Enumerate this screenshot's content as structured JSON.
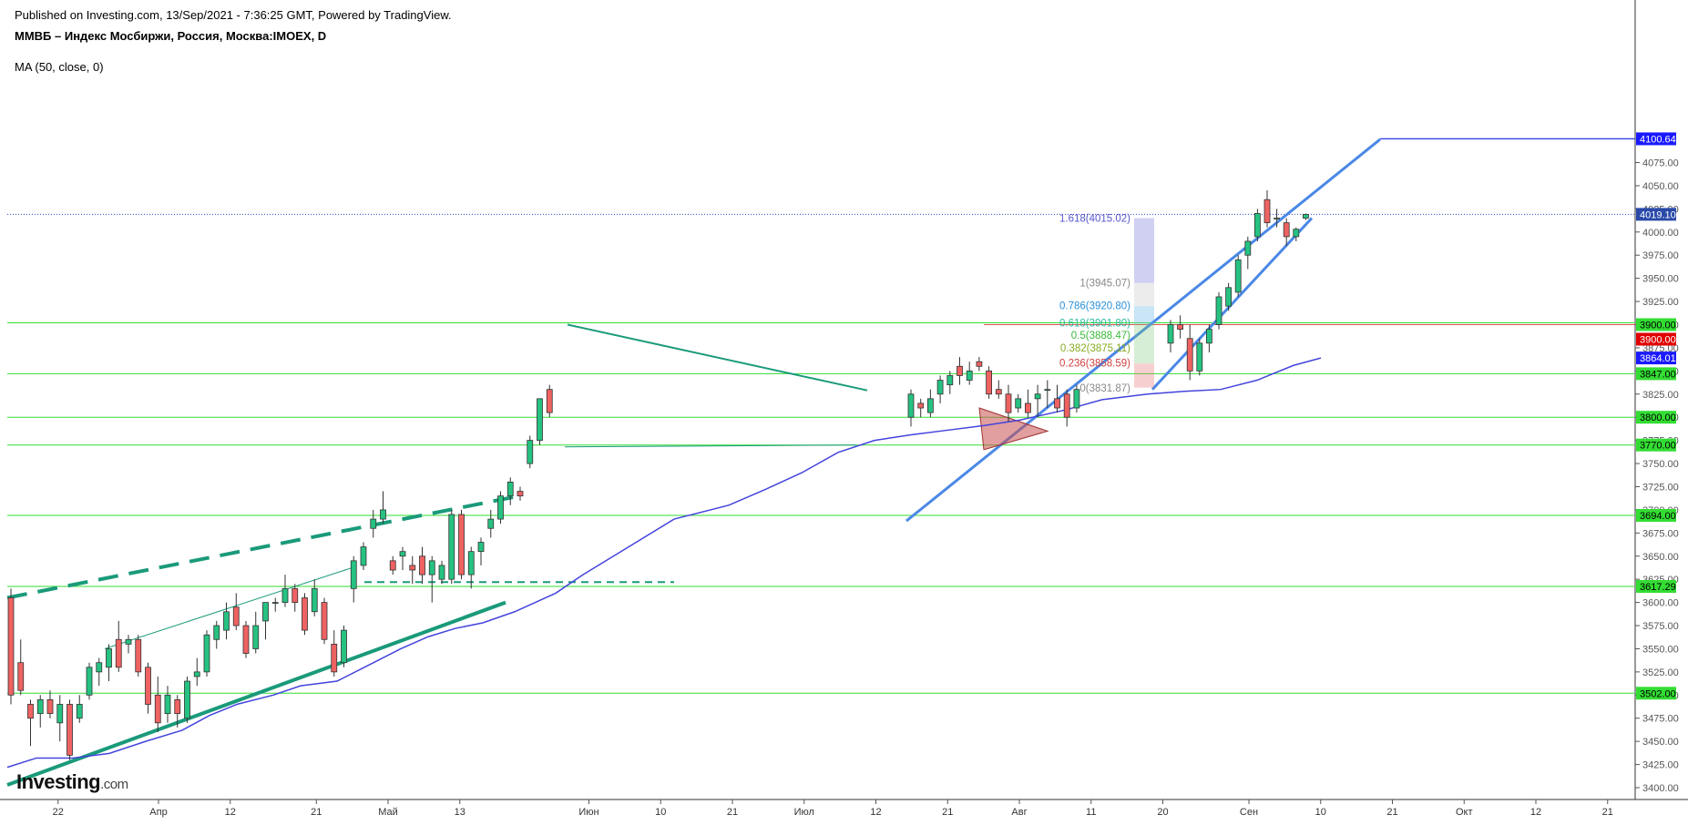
{
  "header": {
    "published": "Published on Investing.com, 13/Sep/2021 - 7:36:25 GMT, Powered by TradingView.",
    "symbol": "ММВБ – Индекс Мосбиржи, Россия, Москва:IMOEX, D",
    "indicator": "MA (50, close, 0)"
  },
  "logo": {
    "brand": "Investing",
    "suffix": ".com"
  },
  "chart_data": {
    "type": "candlestick",
    "ylim": [
      3390,
      4110
    ],
    "x_tick_labels": [
      {
        "label": "22",
        "bar": 1
      },
      {
        "label": "Апр",
        "bar": 8
      },
      {
        "label": "12",
        "bar": 13
      },
      {
        "label": "21",
        "bar": 19
      },
      {
        "label": "Май",
        "bar": 24
      },
      {
        "label": "13",
        "bar": 29
      },
      {
        "label": "Июн",
        "bar": 38
      },
      {
        "label": "10",
        "bar": 43
      },
      {
        "label": "21",
        "bar": 48
      },
      {
        "label": "Июл",
        "bar": 53
      },
      {
        "label": "12",
        "bar": 58
      },
      {
        "label": "21",
        "bar": 63
      },
      {
        "label": "Авг",
        "bar": 68
      },
      {
        "label": "11",
        "bar": 73
      },
      {
        "label": "20",
        "bar": 78
      },
      {
        "label": "Сен",
        "bar": 84
      },
      {
        "label": "10",
        "bar": 89
      },
      {
        "label": "21",
        "bar": 94
      },
      {
        "label": "Окт",
        "bar": 99
      },
      {
        "label": "12",
        "bar": 104
      },
      {
        "label": "21",
        "bar": 109
      }
    ],
    "y_ticks": [
      3400,
      3425,
      3450,
      3475,
      3500,
      3525,
      3550,
      3575,
      3600,
      3625,
      3650,
      3675,
      3700,
      3725,
      3750,
      3775,
      3800,
      3825,
      3850,
      3875,
      3900,
      3925,
      3950,
      3975,
      4000,
      4025,
      4050,
      4075
    ],
    "candles": [
      {
        "o": 3605,
        "h": 3615,
        "l": 3490,
        "c": 3500
      },
      {
        "o": 3535,
        "h": 3560,
        "l": 3500,
        "c": 3505
      },
      {
        "o": 3490,
        "h": 3495,
        "l": 3445,
        "c": 3475
      },
      {
        "o": 3480,
        "h": 3500,
        "l": 3465,
        "c": 3495
      },
      {
        "o": 3495,
        "h": 3505,
        "l": 3475,
        "c": 3480
      },
      {
        "o": 3470,
        "h": 3500,
        "l": 3450,
        "c": 3490
      },
      {
        "o": 3490,
        "h": 3495,
        "l": 3430,
        "c": 3435
      },
      {
        "o": 3475,
        "h": 3500,
        "l": 3470,
        "c": 3490
      },
      {
        "o": 3500,
        "h": 3535,
        "l": 3495,
        "c": 3530
      },
      {
        "o": 3525,
        "h": 3540,
        "l": 3510,
        "c": 3535
      },
      {
        "o": 3530,
        "h": 3555,
        "l": 3515,
        "c": 3550
      },
      {
        "o": 3560,
        "h": 3580,
        "l": 3525,
        "c": 3530
      },
      {
        "o": 3555,
        "h": 3565,
        "l": 3545,
        "c": 3560
      },
      {
        "o": 3560,
        "h": 3565,
        "l": 3520,
        "c": 3525
      },
      {
        "o": 3530,
        "h": 3535,
        "l": 3480,
        "c": 3490
      },
      {
        "o": 3500,
        "h": 3520,
        "l": 3460,
        "c": 3470
      },
      {
        "o": 3480,
        "h": 3510,
        "l": 3470,
        "c": 3500
      },
      {
        "o": 3495,
        "h": 3500,
        "l": 3465,
        "c": 3480
      },
      {
        "o": 3475,
        "h": 3520,
        "l": 3470,
        "c": 3515
      },
      {
        "o": 3520,
        "h": 3540,
        "l": 3510,
        "c": 3525
      },
      {
        "o": 3525,
        "h": 3570,
        "l": 3520,
        "c": 3565
      },
      {
        "o": 3560,
        "h": 3580,
        "l": 3550,
        "c": 3575
      },
      {
        "o": 3570,
        "h": 3600,
        "l": 3560,
        "c": 3590
      },
      {
        "o": 3595,
        "h": 3610,
        "l": 3570,
        "c": 3575
      },
      {
        "o": 3575,
        "h": 3580,
        "l": 3540,
        "c": 3545
      },
      {
        "o": 3550,
        "h": 3590,
        "l": 3545,
        "c": 3575
      },
      {
        "o": 3580,
        "h": 3600,
        "l": 3560,
        "c": 3600
      },
      {
        "o": 3600,
        "h": 3605,
        "l": 3590,
        "c": 3600
      },
      {
        "o": 3600,
        "h": 3630,
        "l": 3595,
        "c": 3615
      },
      {
        "o": 3615,
        "h": 3620,
        "l": 3590,
        "c": 3600
      },
      {
        "o": 3605,
        "h": 3610,
        "l": 3565,
        "c": 3570
      },
      {
        "o": 3590,
        "h": 3625,
        "l": 3585,
        "c": 3615
      },
      {
        "o": 3600,
        "h": 3605,
        "l": 3555,
        "c": 3560
      },
      {
        "o": 3555,
        "h": 3570,
        "l": 3520,
        "c": 3525
      },
      {
        "o": 3535,
        "h": 3575,
        "l": 3530,
        "c": 3570
      },
      {
        "o": 3615,
        "h": 3650,
        "l": 3600,
        "c": 3645
      },
      {
        "o": 3640,
        "h": 3665,
        "l": 3635,
        "c": 3660
      },
      {
        "o": 3680,
        "h": 3700,
        "l": 3670,
        "c": 3690
      },
      {
        "o": 3690,
        "h": 3720,
        "l": 3685,
        "c": 3700
      },
      {
        "o": 3645,
        "h": 3650,
        "l": 3630,
        "c": 3635
      },
      {
        "o": 3650,
        "h": 3660,
        "l": 3635,
        "c": 3655
      },
      {
        "o": 3640,
        "h": 3650,
        "l": 3620,
        "c": 3635
      },
      {
        "o": 3650,
        "h": 3660,
        "l": 3620,
        "c": 3630
      },
      {
        "o": 3630,
        "h": 3650,
        "l": 3600,
        "c": 3645
      },
      {
        "o": 3625,
        "h": 3645,
        "l": 3620,
        "c": 3640
      },
      {
        "o": 3625,
        "h": 3700,
        "l": 3620,
        "c": 3695
      },
      {
        "o": 3695,
        "h": 3700,
        "l": 3625,
        "c": 3630
      },
      {
        "o": 3630,
        "h": 3660,
        "l": 3615,
        "c": 3655
      },
      {
        "o": 3655,
        "h": 3670,
        "l": 3640,
        "c": 3665
      },
      {
        "o": 3680,
        "h": 3700,
        "l": 3670,
        "c": 3690
      },
      {
        "o": 3690,
        "h": 3720,
        "l": 3685,
        "c": 3715
      },
      {
        "o": 3715,
        "h": 3735,
        "l": 3705,
        "c": 3730
      },
      {
        "o": 3720,
        "h": 3725,
        "l": 3710,
        "c": 3715
      },
      {
        "o": 3750,
        "h": 3780,
        "l": 3745,
        "c": 3775
      },
      {
        "o": 3775,
        "h": 3820,
        "l": 3770,
        "c": 3820
      },
      {
        "o": 3830,
        "h": 3835,
        "l": 3800,
        "c": 3805
      }
    ],
    "candles_group2": [
      {
        "o": 3800,
        "h": 3830,
        "l": 3790,
        "c": 3825
      },
      {
        "o": 3815,
        "h": 3820,
        "l": 3800,
        "c": 3810
      },
      {
        "o": 3805,
        "h": 3830,
        "l": 3800,
        "c": 3820
      },
      {
        "o": 3825,
        "h": 3845,
        "l": 3815,
        "c": 3840
      },
      {
        "o": 3835,
        "h": 3850,
        "l": 3825,
        "c": 3845
      },
      {
        "o": 3855,
        "h": 3865,
        "l": 3835,
        "c": 3845
      },
      {
        "o": 3840,
        "h": 3860,
        "l": 3835,
        "c": 3850
      },
      {
        "o": 3860,
        "h": 3865,
        "l": 3850,
        "c": 3855
      },
      {
        "o": 3850,
        "h": 3855,
        "l": 3820,
        "c": 3825
      },
      {
        "o": 3830,
        "h": 3840,
        "l": 3820,
        "c": 3825
      },
      {
        "o": 3825,
        "h": 3835,
        "l": 3795,
        "c": 3805
      },
      {
        "o": 3810,
        "h": 3825,
        "l": 3805,
        "c": 3820
      },
      {
        "o": 3815,
        "h": 3830,
        "l": 3800,
        "c": 3805
      },
      {
        "o": 3820,
        "h": 3835,
        "l": 3800,
        "c": 3825
      },
      {
        "o": 3830,
        "h": 3840,
        "l": 3810,
        "c": 3830
      },
      {
        "o": 3820,
        "h": 3835,
        "l": 3805,
        "c": 3810
      },
      {
        "o": 3825,
        "h": 3830,
        "l": 3790,
        "c": 3800
      },
      {
        "o": 3810,
        "h": 3835,
        "l": 3805,
        "c": 3830
      }
    ]
  }
}
